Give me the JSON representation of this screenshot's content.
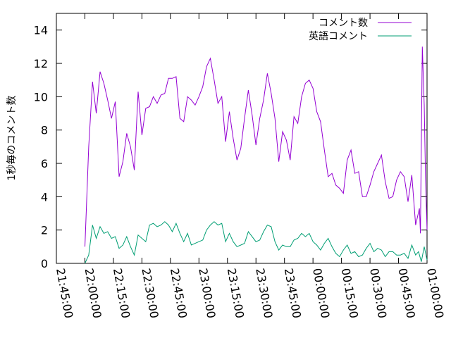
{
  "chart_data": {
    "type": "line",
    "title": "",
    "xlabel": "",
    "ylabel": "1秒毎のコメント数",
    "ylim": [
      0,
      15
    ],
    "yticks": [
      0,
      2,
      4,
      6,
      8,
      10,
      12,
      14
    ],
    "xticks": [
      "21:45:00",
      "22:00:00",
      "22:15:00",
      "22:30:00",
      "22:45:00",
      "23:00:00",
      "23:15:00",
      "23:30:00",
      "23:45:00",
      "00:00:00",
      "00:15:00",
      "00:30:00",
      "00:45:00",
      "01:00:00"
    ],
    "x_unit": "minutes since 21:45:00",
    "xlim": [
      0,
      195
    ],
    "legend_position": "top-right",
    "grid": false,
    "series": [
      {
        "name": "コメント数",
        "color": "#9400d3",
        "x": [
          15,
          17,
          19,
          21,
          23,
          25,
          27,
          29,
          31,
          33,
          35,
          37,
          39,
          41,
          43,
          45,
          47,
          49,
          51,
          53,
          55,
          57,
          59,
          61,
          63,
          65,
          67,
          69,
          71,
          73,
          75,
          77,
          79,
          81,
          83,
          85,
          87,
          89,
          91,
          93,
          95,
          97,
          99,
          101,
          103,
          105,
          107,
          109,
          111,
          113,
          115,
          117,
          119,
          121,
          123,
          125,
          127,
          129,
          131,
          133,
          135,
          137,
          139,
          141,
          143,
          145,
          147,
          149,
          151,
          153,
          155,
          157,
          159,
          161,
          163,
          165,
          167,
          169,
          171,
          173,
          175,
          177,
          179,
          181,
          183,
          185,
          187,
          189,
          191,
          193,
          195
        ],
        "values": [
          1.0,
          7.0,
          10.9,
          9.0,
          11.5,
          10.8,
          9.8,
          8.7,
          9.7,
          5.2,
          6.1,
          7.8,
          7.0,
          5.6,
          10.3,
          7.7,
          9.3,
          9.4,
          10.0,
          9.6,
          10.1,
          10.2,
          11.1,
          11.1,
          11.2,
          8.7,
          8.5,
          10.0,
          9.8,
          9.5,
          10.0,
          10.6,
          11.8,
          12.3,
          11.0,
          9.6,
          10.0,
          7.3,
          9.1,
          7.5,
          6.2,
          6.9,
          8.7,
          10.4,
          8.9,
          7.1,
          8.7,
          9.8,
          11.4,
          10.2,
          8.7,
          6.1,
          7.9,
          7.4,
          6.2,
          8.8,
          8.4,
          10.0,
          10.8,
          11.0,
          10.5,
          9.1,
          8.5,
          6.8,
          5.2,
          5.4,
          4.7,
          4.5,
          4.2,
          6.2,
          6.8,
          5.4,
          5.5,
          4.0,
          4.0,
          4.7,
          5.5,
          6.0,
          6.5,
          4.9,
          3.9,
          4.0,
          5.0,
          5.5,
          5.2,
          3.7,
          5.3,
          2.3,
          3.3,
          4.6,
          2.8
        ]
      },
      {
        "name": "英語コメント",
        "color": "#009e73",
        "x": [
          15,
          17,
          19,
          21,
          23,
          25,
          27,
          29,
          31,
          33,
          35,
          37,
          39,
          41,
          43,
          45,
          47,
          49,
          51,
          53,
          55,
          57,
          59,
          61,
          63,
          65,
          67,
          69,
          71,
          73,
          75,
          77,
          79,
          81,
          83,
          85,
          87,
          89,
          91,
          93,
          95,
          97,
          99,
          101,
          103,
          105,
          107,
          109,
          111,
          113,
          115,
          117,
          119,
          121,
          123,
          125,
          127,
          129,
          131,
          133,
          135,
          137,
          139,
          141,
          143,
          145,
          147,
          149,
          151,
          153,
          155,
          157,
          159,
          161,
          163,
          165,
          167,
          169,
          171,
          173,
          175,
          177,
          179,
          181,
          183,
          185,
          187,
          189,
          191,
          193,
          195
        ],
        "values": [
          0.0,
          0.5,
          2.3,
          1.5,
          2.2,
          1.8,
          1.9,
          1.5,
          1.6,
          0.9,
          1.1,
          1.6,
          1.0,
          0.5,
          1.7,
          1.5,
          1.3,
          2.3,
          2.4,
          2.2,
          2.3,
          2.5,
          2.3,
          1.9,
          2.4,
          1.8,
          1.3,
          1.8,
          1.1,
          1.2,
          1.3,
          1.4,
          2.0,
          2.3,
          2.5,
          2.3,
          2.4,
          1.3,
          1.8,
          1.3,
          1.0,
          1.1,
          1.2,
          1.9,
          1.6,
          1.3,
          1.4,
          1.9,
          2.3,
          2.2,
          1.3,
          0.8,
          1.1,
          1.0,
          1.0,
          1.4,
          1.5,
          1.8,
          1.6,
          1.8,
          1.3,
          1.1,
          0.8,
          1.2,
          1.5,
          1.0,
          0.6,
          0.4,
          0.8,
          1.1,
          0.6,
          0.7,
          0.4,
          0.5,
          0.9,
          1.2,
          0.7,
          0.9,
          0.8,
          0.4,
          0.7,
          0.7,
          0.5,
          0.5,
          0.6,
          0.3,
          1.1,
          0.5,
          0.6,
          0.8,
          0.2
        ]
      }
    ],
    "spike_end": {
      "series": "コメント数",
      "x": [
        191.5,
        192.5,
        193.5,
        194.2,
        195
      ],
      "values": [
        1.8,
        13.0,
        9.5,
        5.2,
        2.0
      ]
    },
    "spike_end_en": {
      "series": "英語コメント",
      "x": [
        190.5,
        192,
        193.5,
        195
      ],
      "values": [
        0.7,
        0.1,
        1.0,
        0.2
      ]
    }
  }
}
